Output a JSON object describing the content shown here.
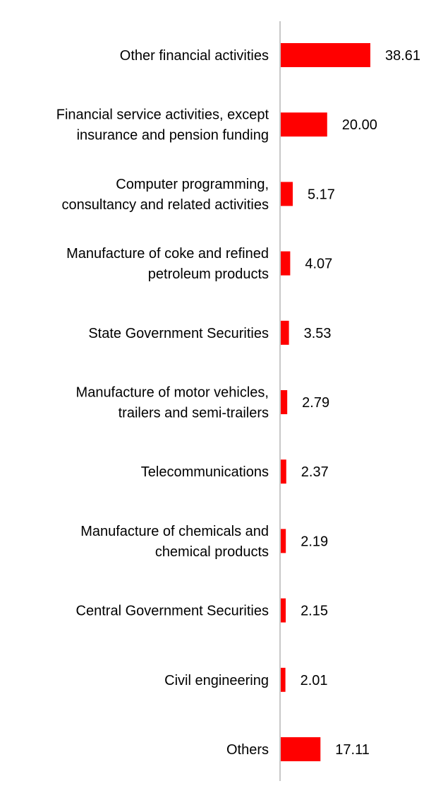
{
  "chart_data": {
    "type": "bar",
    "orientation": "horizontal",
    "categories": [
      [
        "Other financial activities"
      ],
      [
        "Financial service activities, except",
        "insurance and pension funding"
      ],
      [
        "Computer programming,",
        "consultancy and related activities"
      ],
      [
        "Manufacture of coke and refined",
        "petroleum products"
      ],
      [
        "State Government Securities"
      ],
      [
        "Manufacture of motor vehicles,",
        "trailers and semi-trailers"
      ],
      [
        "Telecommunications"
      ],
      [
        "Manufacture of chemicals and",
        "chemical products"
      ],
      [
        "Central Government Securities"
      ],
      [
        "Civil engineering"
      ],
      [
        "Others"
      ]
    ],
    "values": [
      38.61,
      20.0,
      5.17,
      4.07,
      3.53,
      2.79,
      2.37,
      2.19,
      2.15,
      2.01,
      17.11
    ],
    "value_labels": [
      "38.61",
      "20.00",
      "5.17",
      "4.07",
      "3.53",
      "2.79",
      "2.37",
      "2.19",
      "2.15",
      "2.01",
      "17.11"
    ],
    "bar_color": "#ff0000",
    "axis_color": "#c8c8c8",
    "grid": false,
    "legend": "none"
  }
}
